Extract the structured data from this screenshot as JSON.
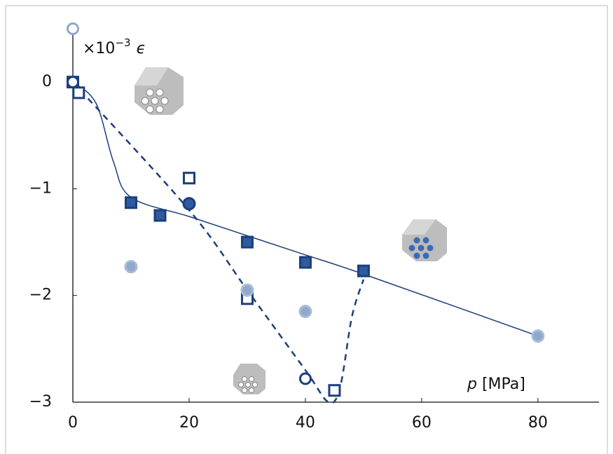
{
  "chart_data": {
    "type": "scatter",
    "y_label": "×10",
    "y_label_exponent": "−3",
    "y_label_symbol": "ϵ",
    "x_label_symbol": "p",
    "x_label_unit": "[MPa]",
    "xlim": [
      0,
      90.5
    ],
    "ylim": [
      -3,
      0.5
    ],
    "xticks": [
      0,
      20,
      40,
      60,
      80
    ],
    "yticks": [
      {
        "value": -3,
        "label": "−3"
      },
      {
        "value": -2,
        "label": "−2"
      },
      {
        "value": -1,
        "label": "−1"
      },
      0
    ],
    "series": [
      {
        "style": "line",
        "dashed": false,
        "color": "#1c3f7c",
        "x": [
          0,
          4,
          7,
          10,
          20,
          30,
          40,
          50,
          80
        ],
        "values": [
          0,
          -0.2,
          -0.75,
          -1.08,
          -1.26,
          -1.44,
          -1.62,
          -1.8,
          -2.38
        ]
      },
      {
        "style": "line",
        "dashed": true,
        "color": "#1c3f7c",
        "x": [
          0,
          20,
          30,
          40,
          44,
          46,
          48,
          50
        ],
        "values": [
          0,
          -1.2,
          -1.95,
          -2.7,
          -3.0,
          -2.85,
          -2.2,
          -1.85
        ]
      },
      {
        "style": "marker",
        "marker": "square",
        "filled": true,
        "color": "#2e5aa0",
        "stroke": "#1c3f7c",
        "x": [
          10,
          15,
          30,
          40,
          50
        ],
        "values": [
          -1.13,
          -1.25,
          -1.5,
          -1.69,
          -1.77
        ]
      },
      {
        "style": "marker",
        "marker": "square",
        "filled": false,
        "color": "#ffffff",
        "stroke": "#1c3f7c",
        "x": [
          0,
          1,
          20,
          30,
          45
        ],
        "values": [
          0,
          -0.1,
          -0.9,
          -2.03,
          -2.89
        ]
      },
      {
        "style": "marker",
        "marker": "circle",
        "filled": true,
        "color": "#2e5aa0",
        "stroke": "#1c3f7c",
        "x": [
          20
        ],
        "values": [
          -1.14
        ]
      },
      {
        "style": "marker",
        "marker": "circle",
        "filled": false,
        "color": "#ffffff",
        "stroke": "#1c3f7c",
        "x": [
          0,
          40
        ],
        "values": [
          0,
          -2.78
        ]
      },
      {
        "style": "marker",
        "marker": "circle",
        "filled": true,
        "color": "#8fa8cc",
        "stroke": "#a9bcd8",
        "x": [
          10,
          30,
          40,
          80
        ],
        "values": [
          -1.73,
          -1.95,
          -2.15,
          -2.38
        ]
      },
      {
        "style": "marker",
        "marker": "circle",
        "filled": false,
        "color": "#ffffff",
        "stroke": "#8fa8cc",
        "x": [
          0
        ],
        "values": [
          0.5
        ]
      }
    ]
  }
}
